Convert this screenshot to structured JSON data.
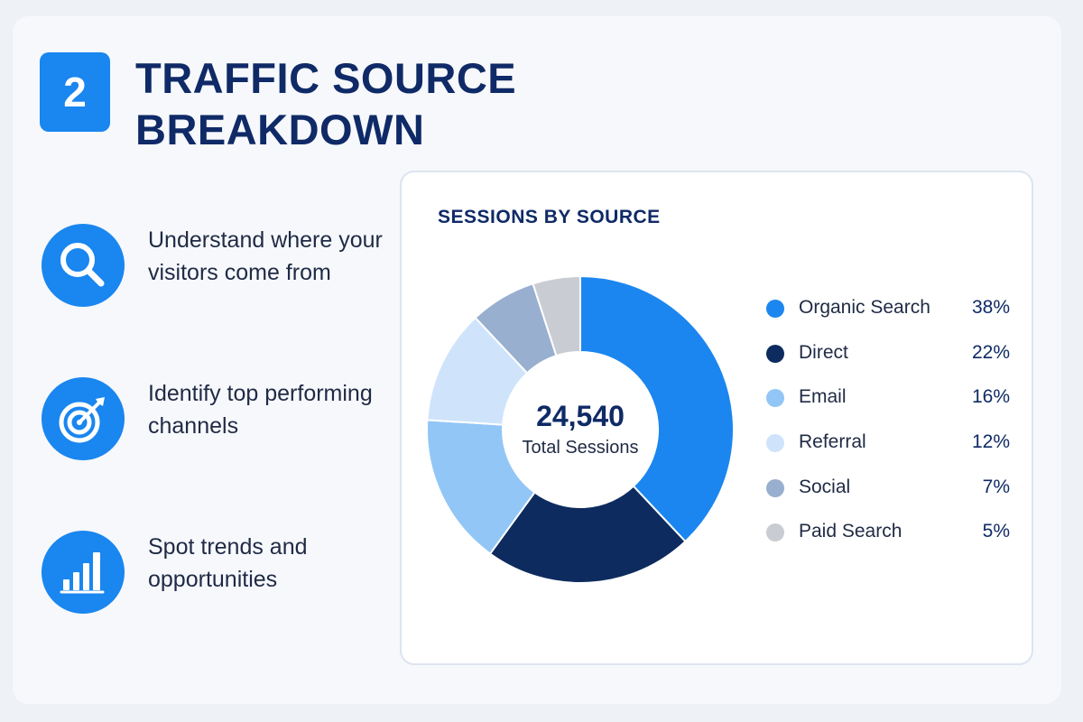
{
  "header": {
    "step_number": "2",
    "title": "TRAFFIC SOURCE BREAKDOWN"
  },
  "features": [
    {
      "icon": "magnifier-icon",
      "text": "Understand where your visitors come from"
    },
    {
      "icon": "target-icon",
      "text": "Identify top performing channels"
    },
    {
      "icon": "bar-chart-icon",
      "text": "Spot trends and opportunities"
    }
  ],
  "colors": {
    "accent": "#1a86ef",
    "title": "#0f2a66",
    "text": "#1f2a44"
  },
  "chart_data": {
    "type": "pie",
    "style": "donut",
    "title": "SESSIONS BY SOURCE",
    "center_value": "24,540",
    "center_label": "Total Sessions",
    "legend_position": "right",
    "slices": [
      {
        "label": "Organic Search",
        "value": 38,
        "display": "38%",
        "color": "#1b86ef"
      },
      {
        "label": "Direct",
        "value": 22,
        "display": "22%",
        "color": "#0d2b5e"
      },
      {
        "label": "Email",
        "value": 16,
        "display": "16%",
        "color": "#92c6f6"
      },
      {
        "label": "Referral",
        "value": 12,
        "display": "12%",
        "color": "#cfe4fb"
      },
      {
        "label": "Social",
        "value": 7,
        "display": "7%",
        "color": "#98afcf"
      },
      {
        "label": "Paid Search",
        "value": 5,
        "display": "5%",
        "color": "#c9cdd3"
      }
    ]
  }
}
